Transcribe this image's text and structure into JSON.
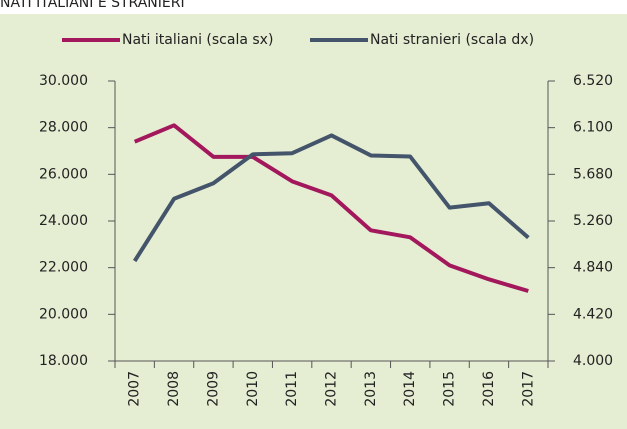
{
  "chart_data": {
    "type": "line",
    "title": "NATI ITALIANI E STRANIERI",
    "categories": [
      "2007",
      "2008",
      "2009",
      "2010",
      "2011",
      "2012",
      "2013",
      "2014",
      "2015",
      "2016",
      "2017"
    ],
    "series": [
      {
        "name": "Nati italiani (scala sx)",
        "color": "#a3185c",
        "values": [
          27400,
          28100,
          26750,
          26750,
          25700,
          25100,
          23600,
          23300,
          22100,
          21500,
          21000
        ]
      },
      {
        "name": "Nati stranieri (scala dx)",
        "color": "#44546a",
        "axis": "y2",
        "values": [
          4900,
          5460,
          5600,
          5860,
          5870,
          6030,
          5850,
          5840,
          5380,
          5420,
          5110
        ]
      }
    ],
    "ylim": [
      18000,
      30000
    ],
    "yticks": [
      {
        "value": 18000,
        "label": "18.000"
      },
      {
        "value": 20000,
        "label": "20.000"
      },
      {
        "value": 22000,
        "label": "22.000"
      },
      {
        "value": 24000,
        "label": "24.000"
      },
      {
        "value": 26000,
        "label": "26.000"
      },
      {
        "value": 28000,
        "label": "28.000"
      },
      {
        "value": 30000,
        "label": "30.000"
      }
    ],
    "y2lim": [
      4000,
      6520
    ],
    "y2ticks": [
      {
        "value": 4000,
        "label": "4.000"
      },
      {
        "value": 4420,
        "label": "4.420"
      },
      {
        "value": 4840,
        "label": "4.840"
      },
      {
        "value": 5260,
        "label": "5.260"
      },
      {
        "value": 5680,
        "label": "5.680"
      },
      {
        "value": 6100,
        "label": "6.100"
      },
      {
        "value": 6520,
        "label": "6.520"
      }
    ],
    "legend": "top"
  }
}
